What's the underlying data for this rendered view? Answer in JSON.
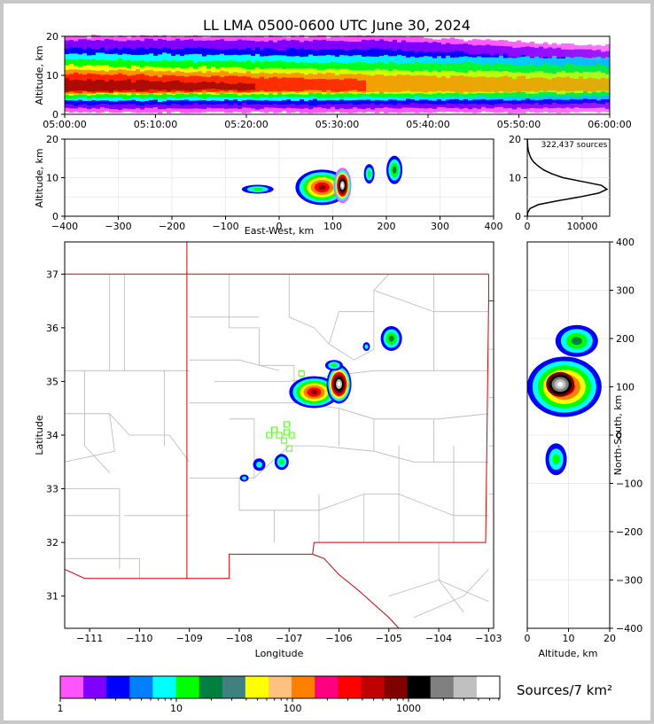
{
  "chart_data": {
    "type": "heatmap",
    "title": "LL LMA 0500-0600 UTC June 30, 2024",
    "time_panel": {
      "ylabel": "Altitude, km",
      "ylim": [
        0,
        20
      ],
      "yticks": [
        "0",
        "10",
        "20"
      ],
      "xticks": [
        "05:00:00",
        "05:10:00",
        "05:20:00",
        "05:30:00",
        "05:40:00",
        "05:50:00",
        "06:00:00"
      ]
    },
    "ew_alt_panel": {
      "ylabel": "Altitude, km",
      "xlabel": "East-West, km",
      "xlim": [
        -400,
        400
      ],
      "ylim": [
        0,
        20
      ],
      "xticks": [
        "−400",
        "−300",
        "−200",
        "−100",
        "0",
        "100",
        "200",
        "300",
        "400"
      ],
      "yticks": [
        "0",
        "10",
        "20"
      ]
    },
    "histogram_panel": {
      "annotation": "322,437 sources",
      "xticks": [
        "0",
        "10000"
      ],
      "yticks": [
        "0",
        "10",
        "20"
      ],
      "xlim": [
        0,
        15000
      ],
      "ylim": [
        0,
        20
      ],
      "profile": {
        "altitude_km": [
          0,
          1,
          2,
          3,
          4,
          5,
          6,
          7,
          8,
          9,
          10,
          11,
          12,
          13,
          14,
          15,
          16,
          17,
          18,
          19,
          20
        ],
        "counts": [
          0,
          100,
          500,
          2000,
          5500,
          9500,
          13000,
          14500,
          13500,
          10000,
          6500,
          4500,
          3000,
          2000,
          1200,
          700,
          400,
          200,
          100,
          50,
          0
        ]
      }
    },
    "plan_panel": {
      "xlabel": "Longitude",
      "ylabel": "Latitude",
      "xlim": [
        -111.5,
        -102.9
      ],
      "ylim": [
        30.4,
        37.6
      ],
      "xticks": [
        "−111",
        "−110",
        "−109",
        "−108",
        "−107",
        "−106",
        "−105",
        "−104",
        "−103"
      ],
      "yticks": [
        "31",
        "32",
        "33",
        "34",
        "35",
        "36",
        "37"
      ],
      "station_markers_lonlat": [
        [
          -107.3,
          34.1
        ],
        [
          -107.05,
          34.2
        ],
        [
          -107.2,
          34.0
        ],
        [
          -107.4,
          34.0
        ],
        [
          -106.95,
          34.0
        ],
        [
          -107.1,
          33.9
        ],
        [
          -107.0,
          33.75
        ],
        [
          -106.75,
          35.15
        ],
        [
          -107.05,
          34.05
        ]
      ]
    },
    "ns_alt_panel": {
      "xlabel": "Altitude, km",
      "ylabel": "North-South, km",
      "xlim": [
        0,
        20
      ],
      "ylim": [
        -400,
        400
      ],
      "xticks": [
        "0",
        "10",
        "20"
      ],
      "yticks": [
        "−400",
        "−300",
        "−200",
        "−100",
        "0",
        "100",
        "200",
        "300",
        "400"
      ]
    },
    "colorbar": {
      "label": "Sources/7 km²",
      "ticks": [
        "1",
        "10",
        "100",
        "1000"
      ],
      "colors": [
        "#ff55ff",
        "#8000ff",
        "#0000ff",
        "#0080ff",
        "#00ffff",
        "#00ff00",
        "#008040",
        "#408080",
        "#ffff00",
        "#ffc080",
        "#ff8000",
        "#ff0080",
        "#ff0000",
        "#c00000",
        "#800000",
        "#000000",
        "#808080",
        "#c0c0c0",
        "#ffffff"
      ]
    }
  }
}
